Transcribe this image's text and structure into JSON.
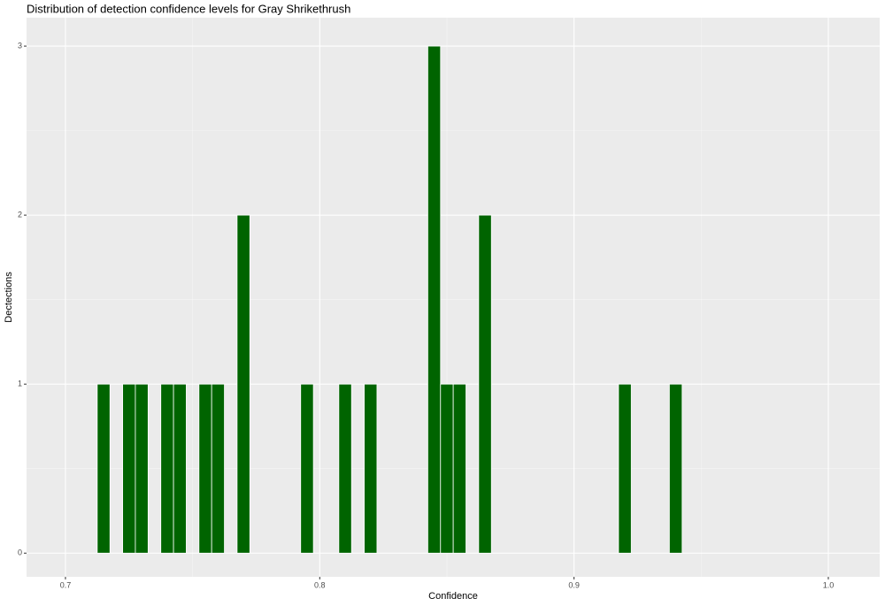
{
  "chart_data": {
    "type": "histogram",
    "title": "Distribution of detection confidence levels for Gray Shrikethrush",
    "x_label": "Confidence",
    "y_label": "Dectections",
    "bins": [
      0.7125,
      0.7175,
      0.7225,
      0.7275,
      0.7325,
      0.7375,
      0.7425,
      0.7475,
      0.7525,
      0.7575,
      0.7625,
      0.7675,
      0.7725,
      0.7775,
      0.7825,
      0.7875,
      0.7925,
      0.7975,
      0.8025,
      0.8075,
      0.8125,
      0.8175,
      0.8225,
      0.8275,
      0.8325,
      0.8375,
      0.8425,
      0.8475,
      0.8525,
      0.8575,
      0.8625,
      0.8675,
      0.8725,
      0.8775,
      0.8825,
      0.8875,
      0.8925,
      0.8975,
      0.9025,
      0.9075,
      0.9125,
      0.9175,
      0.9225,
      0.9275,
      0.9325,
      0.9375,
      0.9425
    ],
    "values": [
      1,
      0,
      1,
      1,
      0,
      1,
      1,
      0,
      1,
      1,
      0,
      2,
      0,
      0,
      0,
      0,
      1,
      0,
      0,
      1,
      0,
      1,
      0,
      0,
      0,
      0,
      3,
      1,
      1,
      0,
      2,
      0,
      0,
      0,
      0,
      0,
      0,
      0,
      0,
      0,
      0,
      1,
      0,
      0,
      0,
      1
    ],
    "color": "#006400",
    "xlim": [
      0.6847,
      1.0202
    ],
    "xticks": [
      0.7,
      0.8,
      0.9,
      {
        "value": 1,
        "label": "1.0"
      }
    ],
    "ylim": [
      -0.14,
      3.168
    ],
    "yticks": [
      0,
      1,
      2,
      3
    ],
    "grid": true
  }
}
